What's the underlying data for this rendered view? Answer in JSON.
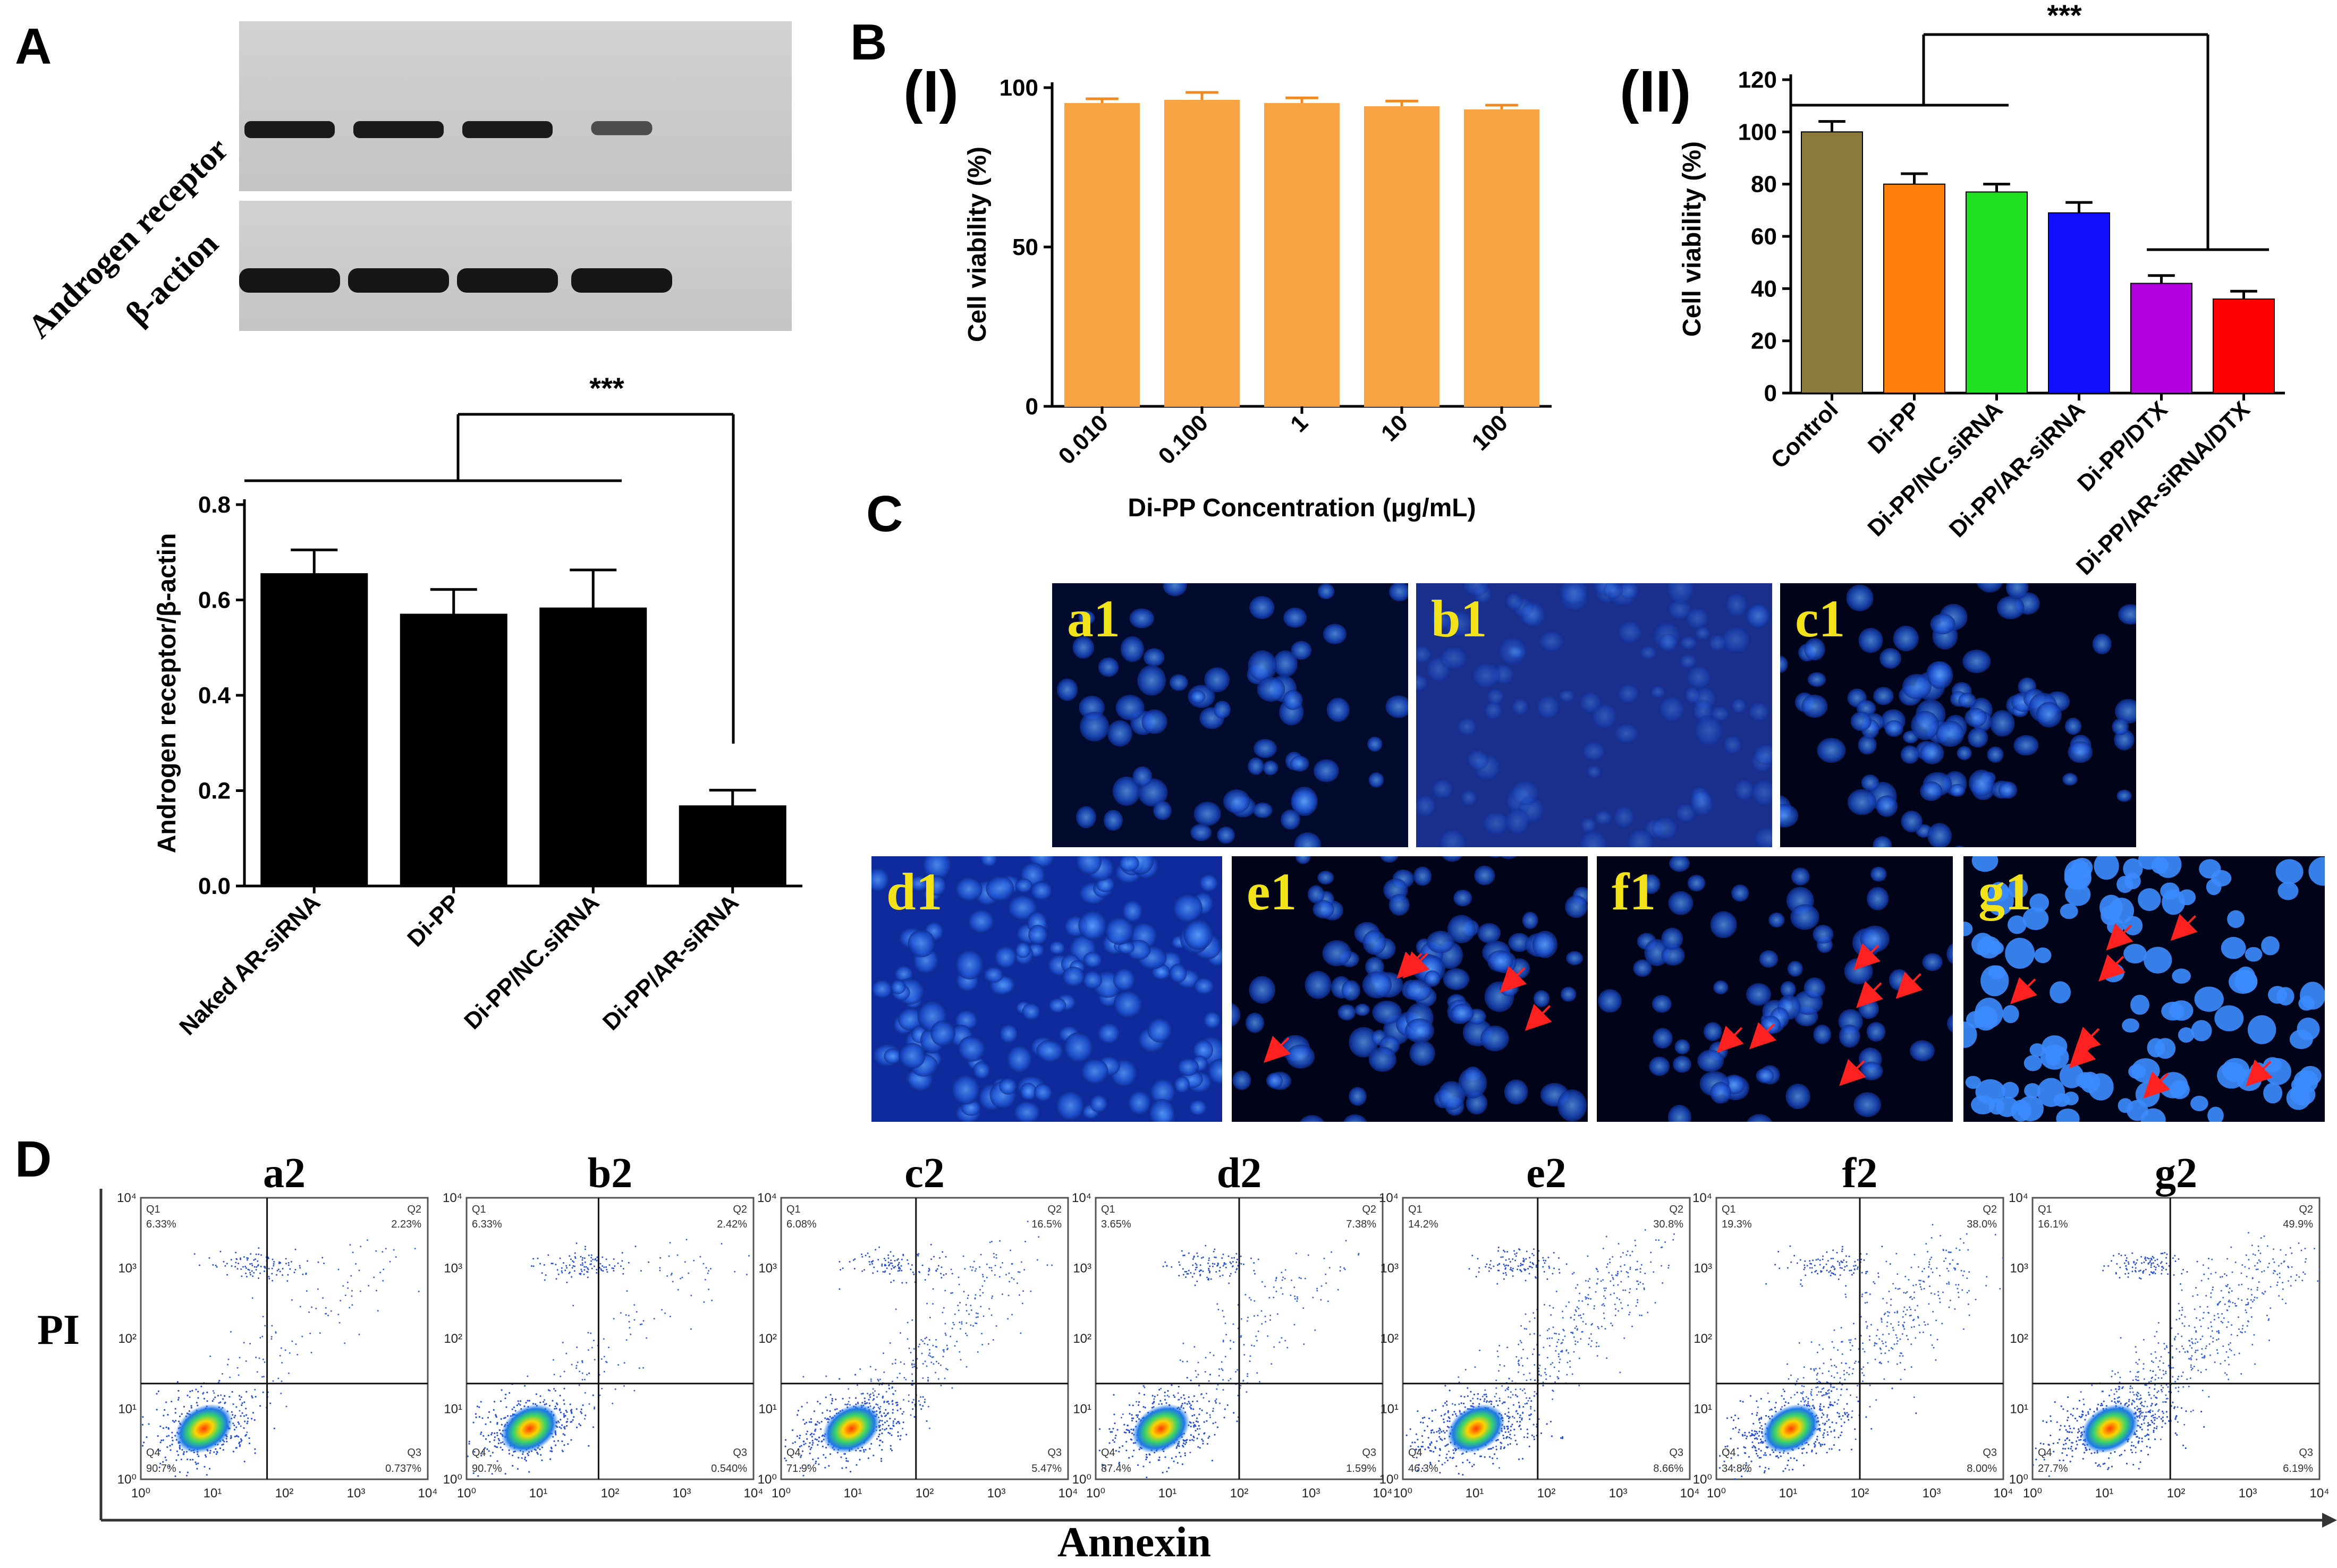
{
  "panels": {
    "A": "A",
    "B": "B",
    "C": "C",
    "D": "D"
  },
  "western_blot": {
    "row_labels": [
      "Androgen receptor",
      "β-action"
    ],
    "band_intensity_ar": [
      1,
      1,
      1,
      0.45
    ],
    "band_intensity_actin": [
      1,
      1,
      1,
      1
    ]
  },
  "panel_b_labels": {
    "I": "(I)",
    "II": "(II)"
  },
  "significance": "***",
  "chart_data": [
    {
      "id": "A-bar",
      "type": "bar",
      "title": "",
      "ylabel": "Androgen receptor/β-actin",
      "xlabel": "",
      "ylim": [
        0,
        0.8
      ],
      "yticks": [
        "0.0",
        "0.2",
        "0.4",
        "0.6",
        "0.8"
      ],
      "categories": [
        "Naked AR-siRNA",
        "Di-PP",
        "Di-PP/NC.siRNA",
        "Di-PP/AR-siRNA"
      ],
      "values": [
        0.655,
        0.57,
        0.583,
        0.168
      ],
      "errors": [
        0.05,
        0.052,
        0.08,
        0.033
      ],
      "colors": [
        "#000000",
        "#000000",
        "#000000",
        "#000000"
      ]
    },
    {
      "id": "B-I",
      "type": "bar",
      "title": "",
      "ylabel": "Cell viability (%)",
      "xlabel": "Di-PP Concentration (μg/mL)",
      "ylim": [
        0,
        100
      ],
      "yticks": [
        "0",
        "50",
        "100"
      ],
      "categories": [
        "0.010",
        "0.100",
        "1",
        "10",
        "100"
      ],
      "values": [
        95,
        96,
        95,
        94,
        93
      ],
      "errors": [
        1.5,
        2.5,
        1.8,
        1.8,
        1.5
      ],
      "colors": [
        "#f7a243",
        "#f7a243",
        "#f7a243",
        "#f7a243",
        "#f7a243"
      ]
    },
    {
      "id": "B-II",
      "type": "bar",
      "title": "",
      "ylabel": "Cell viability (%)",
      "xlabel": "",
      "ylim": [
        0,
        120
      ],
      "yticks": [
        "0",
        "20",
        "40",
        "60",
        "80",
        "100",
        "120"
      ],
      "categories": [
        "Control",
        "Di-PP",
        "Di-PP/NC.siRNA",
        "Di-PP/AR-siRNA",
        "Di-PP/DTX",
        "Di-PP/AR-siRNA/DTX"
      ],
      "values": [
        100,
        80,
        77,
        69,
        42,
        36
      ],
      "errors": [
        4,
        4,
        3,
        4,
        3,
        3
      ],
      "colors": [
        "#8c7a3a",
        "#ff7f0e",
        "#1fe11f",
        "#1010ff",
        "#b200e0",
        "#ff0000"
      ]
    }
  ],
  "microscopy": {
    "labels": [
      "a1",
      "b1",
      "c1",
      "d1",
      "e1",
      "f1",
      "g1"
    ]
  },
  "flow": {
    "labels": [
      "a2",
      "b2",
      "c2",
      "d2",
      "e2",
      "f2",
      "g2"
    ],
    "quadrant_names": [
      "Q1",
      "Q2",
      "Q3",
      "Q4"
    ],
    "quadrants": [
      [
        "6.33%",
        "2.23%",
        "0.737%",
        "90.7%"
      ],
      [
        "6.33%",
        "2.42%",
        "0.540%",
        "90.7%"
      ],
      [
        "6.08%",
        "16.5%",
        "5.47%",
        "71.9%"
      ],
      [
        "3.65%",
        "7.38%",
        "1.59%",
        "87.4%"
      ],
      [
        "14.2%",
        "30.8%",
        "8.66%",
        "46.3%"
      ],
      [
        "19.3%",
        "38.0%",
        "8.00%",
        "34.8%"
      ],
      [
        "16.1%",
        "49.9%",
        "6.19%",
        "27.7%"
      ]
    ],
    "ticks": [
      "10⁰",
      "10¹",
      "10²",
      "10³",
      "10⁴"
    ],
    "y_axis": "PI",
    "x_axis": "Annexin"
  }
}
